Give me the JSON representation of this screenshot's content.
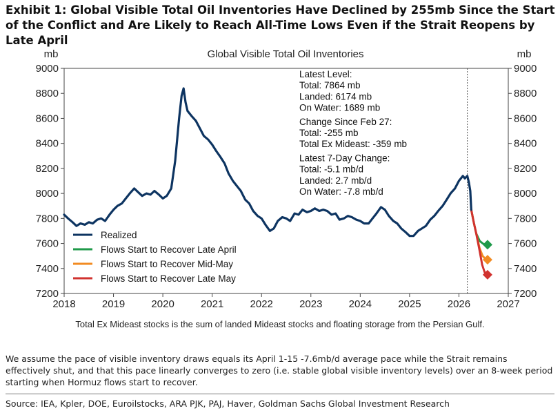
{
  "exhibit": {
    "title": "Exhibit 1: Global Visible Total Oil Inventories Have Declined by 255mb Since the Start of the Conflict and Are Likely to Reach All-Time Lows Even if the Strait Reopens by Late April",
    "chart_footnote": "Total Ex Mideast stocks is the sum of landed Mideast stocks and floating storage from the Persian Gulf.",
    "note": "We assume the pace of visible inventory draws equals its April 1-15 -7.6mb/d average pace while the Strait remains effectively shut, and that this pace linearly converges to zero (i.e. stable global visible inventory levels) over an 8-week period starting when Hormuz flows start to recover.",
    "source": "Source: IEA, Kpler, DOE, Euroilstocks, ARA PJK, PAJ, Haver, Goldman Sachs Global Investment Research"
  },
  "colors": {
    "realized": "#0d3461",
    "late_april": "#1f9a4a",
    "mid_may": "#f28b22",
    "late_may": "#d1322f",
    "axis": "#444444"
  },
  "chart_data": {
    "type": "line",
    "title": "Global Visible Total Oil Inventories",
    "ylabel_left": "mb",
    "ylabel_right": "mb",
    "xlim": [
      2018,
      2027
    ],
    "ylim": [
      7200,
      9000
    ],
    "x_ticks": [
      "2018",
      "2019",
      "2020",
      "2021",
      "2022",
      "2023",
      "2024",
      "2025",
      "2026",
      "2027"
    ],
    "y_ticks": [
      "7200",
      "7400",
      "7600",
      "7800",
      "8000",
      "8200",
      "8400",
      "8600",
      "8800",
      "9000"
    ],
    "vline_x": 2026.17,
    "legend": [
      "Realized",
      "Flows Start to Recover Late April",
      "Flows Start to Recover Mid-May",
      "Flows Start to Recover Late May"
    ],
    "annotation": [
      "Latest Level:",
      "Total: 7864 mb",
      "Landed: 6174 mb",
      "On Water: 1689 mb",
      "Change Since Feb 27:",
      "Total: -255 mb",
      "Total Ex Mideast: -359 mb",
      "Latest 7-Day Change:",
      "Total: -5.1 mb/d",
      "Landed: 2.7 mb/d",
      "On Water: -7.8 mb/d"
    ],
    "series": [
      {
        "name": "Realized",
        "x": [
          2018.0,
          2018.08,
          2018.17,
          2018.25,
          2018.33,
          2018.42,
          2018.5,
          2018.58,
          2018.67,
          2018.75,
          2018.83,
          2018.92,
          2019.0,
          2019.08,
          2019.17,
          2019.25,
          2019.33,
          2019.42,
          2019.5,
          2019.58,
          2019.67,
          2019.75,
          2019.83,
          2019.92,
          2020.0,
          2020.08,
          2020.17,
          2020.25,
          2020.33,
          2020.38,
          2020.42,
          2020.46,
          2020.5,
          2020.58,
          2020.67,
          2020.75,
          2020.83,
          2020.92,
          2021.0,
          2021.08,
          2021.17,
          2021.25,
          2021.33,
          2021.42,
          2021.5,
          2021.58,
          2021.67,
          2021.75,
          2021.83,
          2021.92,
          2022.0,
          2022.08,
          2022.17,
          2022.25,
          2022.33,
          2022.42,
          2022.5,
          2022.58,
          2022.67,
          2022.75,
          2022.83,
          2022.92,
          2023.0,
          2023.08,
          2023.17,
          2023.25,
          2023.33,
          2023.42,
          2023.5,
          2023.58,
          2023.67,
          2023.75,
          2023.83,
          2023.92,
          2024.0,
          2024.08,
          2024.17,
          2024.25,
          2024.33,
          2024.42,
          2024.5,
          2024.58,
          2024.67,
          2024.75,
          2024.83,
          2024.92,
          2025.0,
          2025.08,
          2025.17,
          2025.25,
          2025.33,
          2025.42,
          2025.5,
          2025.58,
          2025.67,
          2025.75,
          2025.83,
          2025.92,
          2026.0,
          2026.08,
          2026.12,
          2026.17,
          2026.2,
          2026.23,
          2026.25
        ],
        "values": [
          7830,
          7800,
          7770,
          7740,
          7760,
          7750,
          7770,
          7760,
          7790,
          7800,
          7780,
          7830,
          7870,
          7900,
          7920,
          7960,
          8000,
          8040,
          8010,
          7980,
          8000,
          7990,
          8020,
          7990,
          7960,
          7980,
          8040,
          8260,
          8600,
          8780,
          8840,
          8730,
          8660,
          8620,
          8580,
          8520,
          8460,
          8430,
          8390,
          8340,
          8290,
          8240,
          8160,
          8100,
          8060,
          8020,
          7950,
          7920,
          7860,
          7820,
          7800,
          7750,
          7700,
          7720,
          7780,
          7810,
          7800,
          7780,
          7840,
          7830,
          7870,
          7850,
          7860,
          7880,
          7860,
          7870,
          7860,
          7830,
          7840,
          7790,
          7800,
          7820,
          7810,
          7790,
          7780,
          7760,
          7760,
          7800,
          7840,
          7890,
          7870,
          7820,
          7780,
          7760,
          7720,
          7690,
          7660,
          7660,
          7700,
          7720,
          7740,
          7790,
          7820,
          7860,
          7900,
          7950,
          8000,
          8040,
          8100,
          8140,
          8120,
          8140,
          8090,
          8020,
          7870
        ]
      },
      {
        "name": "Flows Start to Recover Late April",
        "x": [
          2026.25,
          2026.3,
          2026.35,
          2026.42,
          2026.5,
          2026.58
        ],
        "values": [
          7870,
          7770,
          7680,
          7620,
          7595,
          7590
        ]
      },
      {
        "name": "Flows Start to Recover Mid-May",
        "x": [
          2026.25,
          2026.3,
          2026.35,
          2026.42,
          2026.48,
          2026.54,
          2026.58
        ],
        "values": [
          7870,
          7770,
          7680,
          7560,
          7500,
          7475,
          7470
        ]
      },
      {
        "name": "Flows Start to Recover Late May",
        "x": [
          2026.25,
          2026.3,
          2026.35,
          2026.42,
          2026.47,
          2026.52,
          2026.58
        ],
        "values": [
          7870,
          7770,
          7680,
          7540,
          7430,
          7370,
          7350
        ]
      }
    ]
  }
}
